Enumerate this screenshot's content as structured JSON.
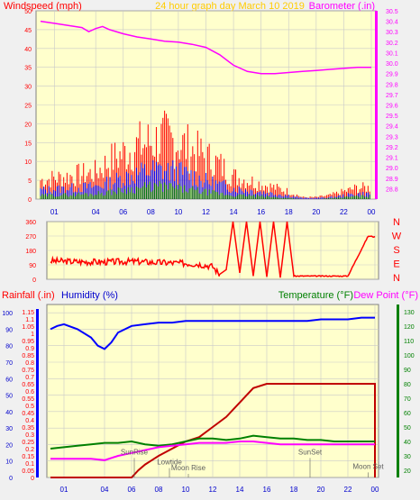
{
  "page": {
    "title": "24 hour graph day   March 10 2019"
  },
  "colors": {
    "background": "#f0f0f0",
    "plot": "#ffffcc",
    "grid": "#c9c9c9",
    "border": "#808080",
    "red": "#ff0000",
    "darkred": "#c00000",
    "blue": "#0000ff",
    "darkblue": "#0000cc",
    "green": "#008000",
    "magenta": "#ff00ff",
    "gray": "#606060"
  },
  "chart_data": [
    {
      "id": "wind",
      "type": "line",
      "left_label": "Windspeed (mph)",
      "right_label": "Barometer (.in)",
      "x_ticks": [
        "01",
        "04",
        "06",
        "08",
        "10",
        "12",
        "14",
        "16",
        "18",
        "20",
        "22",
        "00"
      ],
      "ylim_left": [
        0,
        50
      ],
      "left_ticks": [
        0,
        5,
        10,
        15,
        20,
        25,
        30,
        35,
        40,
        45,
        50
      ],
      "ylim_right": [
        28.7,
        30.5
      ],
      "right_ticks": [
        28.8,
        28.9,
        29.0,
        29.1,
        29.2,
        29.3,
        29.4,
        29.5,
        29.6,
        29.7,
        29.8,
        29.9,
        30.0,
        30.1,
        30.2,
        30.3,
        30.4,
        30.5
      ],
      "barometer": {
        "x": [
          0,
          1,
          2,
          3,
          3.5,
          4,
          4.5,
          5,
          6,
          7,
          8,
          9,
          10,
          11,
          12,
          13,
          14,
          15,
          16,
          17,
          18,
          19,
          20,
          21,
          22,
          23,
          24
        ],
        "y": [
          30.4,
          30.38,
          30.36,
          30.34,
          30.3,
          30.33,
          30.35,
          30.32,
          30.28,
          30.25,
          30.23,
          30.21,
          30.2,
          30.18,
          30.15,
          30.08,
          29.98,
          29.92,
          29.9,
          29.9,
          29.91,
          29.92,
          29.93,
          29.94,
          29.95,
          29.96,
          29.96
        ]
      },
      "gust_profile": {
        "x": [
          0,
          2,
          4,
          5,
          6,
          7,
          8,
          9,
          10,
          11,
          12,
          13,
          14,
          15,
          16,
          17,
          18,
          19,
          20,
          21,
          22,
          23,
          24
        ],
        "y": [
          5,
          6,
          7,
          10,
          12,
          14,
          15,
          16,
          15,
          13,
          11,
          9,
          6,
          5,
          4,
          3,
          2,
          0.5,
          0.5,
          1,
          2,
          3,
          3
        ]
      },
      "avg_profile": {
        "x": [
          0,
          2,
          4,
          5,
          6,
          7,
          8,
          9,
          10,
          11,
          12,
          13,
          14,
          15,
          16,
          17,
          18,
          19,
          20,
          21,
          22,
          23,
          24
        ],
        "y": [
          2.5,
          3,
          3.5,
          4.5,
          6,
          7,
          8,
          8,
          7.5,
          6.5,
          5,
          4,
          3,
          2.5,
          2,
          1.5,
          1,
          0.3,
          0.3,
          0.5,
          1,
          1.5,
          1.5
        ]
      },
      "low_profile": {
        "x": [
          0,
          2,
          4,
          5,
          6,
          7,
          8,
          9,
          10,
          11,
          12,
          13,
          14,
          15,
          16,
          17,
          18,
          19,
          20,
          21,
          22,
          23,
          24
        ],
        "y": [
          1,
          1.2,
          1.5,
          2,
          2.5,
          3,
          3.5,
          3.5,
          3,
          2.5,
          2,
          1.5,
          1,
          1,
          0.8,
          0.5,
          0.3,
          0,
          0,
          0.2,
          0.5,
          0.8,
          0.8
        ]
      }
    },
    {
      "id": "direction",
      "type": "line",
      "left_ticks": [
        0,
        90,
        180,
        270,
        360
      ],
      "ylim": [
        0,
        360
      ],
      "direction_labels": [
        "N",
        "W",
        "S",
        "E",
        "N"
      ],
      "x_ticks": [
        "01",
        "04",
        "06",
        "08",
        "10",
        "12",
        "14",
        "16",
        "18",
        "20",
        "22",
        "00"
      ],
      "segments": [
        {
          "x": [
            0,
            2,
            4,
            6,
            8,
            10,
            11,
            12,
            12.5
          ],
          "y": [
            115,
            110,
            108,
            112,
            105,
            100,
            95,
            80,
            30
          ]
        },
        {
          "x": [
            12.5,
            13,
            13.5,
            14,
            14.5,
            15,
            15.5,
            16,
            16.5,
            17,
            17.5,
            18
          ],
          "y": [
            30,
            60,
            360,
            40,
            360,
            20,
            360,
            15,
            360,
            10,
            360,
            20
          ]
        },
        {
          "x": [
            18,
            22,
            23.5,
            24
          ],
          "y": [
            20,
            20,
            270,
            265
          ]
        }
      ]
    },
    {
      "id": "temp_hum_rain",
      "type": "line",
      "labels": {
        "rainfall": "Rainfall (.in)",
        "humidity": "Humidity (%)",
        "temperature": "Temperature (°F)",
        "dewpoint": "Dew Point (°F)"
      },
      "x_ticks": [
        "01",
        "04",
        "06",
        "08",
        "10",
        "12",
        "14",
        "16",
        "18",
        "20",
        "22",
        "00"
      ],
      "rain_ticks": [
        0,
        0.05,
        0.1,
        0.15,
        0.2,
        0.25,
        0.3,
        0.35,
        0.4,
        0.45,
        0.5,
        0.55,
        0.6,
        0.65,
        0.7,
        0.75,
        0.8,
        0.85,
        0.9,
        0.95,
        1,
        1.05,
        1.1,
        1.15
      ],
      "rain_lim": [
        0,
        1.2
      ],
      "humidity_ticks": [
        0,
        10,
        20,
        30,
        40,
        50,
        60,
        70,
        80,
        90,
        100
      ],
      "humidity_lim": [
        0,
        105
      ],
      "temp_ticks": [
        20,
        30,
        40,
        50,
        60,
        70,
        80,
        90,
        100,
        110,
        120,
        130
      ],
      "temp_lim": [
        15,
        135
      ],
      "rainfall": {
        "x": [
          0,
          6,
          6.5,
          7,
          7.5,
          8,
          9,
          10,
          11,
          12,
          13,
          14,
          15,
          16,
          17,
          18,
          19,
          20,
          21,
          22,
          23,
          24
        ],
        "y": [
          0,
          0,
          0.05,
          0.09,
          0.12,
          0.15,
          0.2,
          0.25,
          0.28,
          0.35,
          0.42,
          0.52,
          0.62,
          0.65,
          0.65,
          0.65,
          0.65,
          0.65,
          0.65,
          0.65,
          0.65,
          0.65
        ]
      },
      "humidity": {
        "x": [
          0,
          0.5,
          1,
          2,
          3,
          3.5,
          4,
          4.5,
          5,
          6,
          7,
          8,
          9,
          10,
          11,
          12,
          13,
          14,
          15,
          16,
          17,
          18,
          19,
          20,
          21,
          22,
          23,
          24
        ],
        "y": [
          90,
          92,
          93,
          90,
          85,
          80,
          78,
          82,
          88,
          92,
          93,
          94,
          94,
          95,
          95,
          95,
          95,
          95,
          95,
          95,
          95,
          95,
          95,
          96,
          96,
          96,
          97,
          97
        ]
      },
      "temperature": {
        "x": [
          0,
          1,
          2,
          3,
          4,
          5,
          6,
          7,
          8,
          9,
          10,
          11,
          12,
          13,
          14,
          15,
          16,
          17,
          18,
          19,
          20,
          21,
          22,
          23,
          24
        ],
        "y": [
          35,
          36,
          37,
          38,
          39,
          39,
          40,
          38,
          37,
          38,
          40,
          42,
          42,
          41,
          42,
          44,
          43,
          42,
          42,
          41,
          41,
          40,
          40,
          40,
          40
        ]
      },
      "dewpoint": {
        "x": [
          0,
          1,
          2,
          3,
          4,
          5,
          6,
          7,
          8,
          9,
          10,
          11,
          12,
          13,
          14,
          15,
          16,
          17,
          18,
          19,
          20,
          21,
          22,
          23,
          24
        ],
        "y": [
          28,
          28,
          28,
          28,
          27,
          30,
          32,
          34,
          36,
          37,
          38,
          39,
          39,
          39,
          40,
          40,
          39,
          38,
          38,
          38,
          38,
          38,
          38,
          38,
          38
        ]
      },
      "annotations": [
        {
          "text": "SunRise",
          "x": 6.2,
          "value": 31
        },
        {
          "text": "Lowtide",
          "x": 8.8,
          "value": 24
        },
        {
          "text": "Moon Rise",
          "x": 10.2,
          "value": 20
        },
        {
          "text": "SunSet",
          "x": 19.2,
          "value": 31
        },
        {
          "text": "Moon Set",
          "x": 23.5,
          "value": 21
        }
      ]
    }
  ]
}
